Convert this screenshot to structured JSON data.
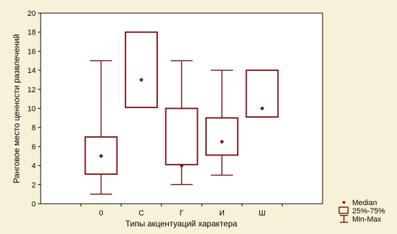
{
  "chart_data": {
    "type": "boxplot",
    "title": "",
    "xlabel": "Типы акцентуаций характера",
    "ylabel": "Ранговое место ценности развлечений",
    "ylim": [
      0,
      20
    ],
    "y_ticks": [
      0,
      2,
      4,
      6,
      8,
      10,
      12,
      14,
      16,
      18,
      20
    ],
    "grid": false,
    "categories": [
      "0",
      "С",
      "Г",
      "И",
      "Ш"
    ],
    "series": [
      {
        "name": "Median",
        "values": [
          5,
          13,
          4,
          6.5,
          10
        ]
      },
      {
        "name": "25%-75%",
        "values": [
          [
            3.1,
            7
          ],
          [
            10.1,
            18
          ],
          [
            4.1,
            10
          ],
          [
            5.1,
            9
          ],
          [
            9.1,
            14
          ]
        ]
      },
      {
        "name": "Min-Max",
        "values": [
          [
            1,
            15
          ],
          [
            10.1,
            18
          ],
          [
            2,
            15
          ],
          [
            3,
            14
          ],
          [
            9.1,
            14
          ]
        ]
      }
    ],
    "legend": {
      "position": "bottom-right",
      "items": [
        "Median",
        "25%-75%",
        "Min-Max"
      ]
    },
    "colors": {
      "box": "#7a1a1a",
      "plot_background": "#ffffff",
      "page_background": "#f7f1d8"
    }
  }
}
